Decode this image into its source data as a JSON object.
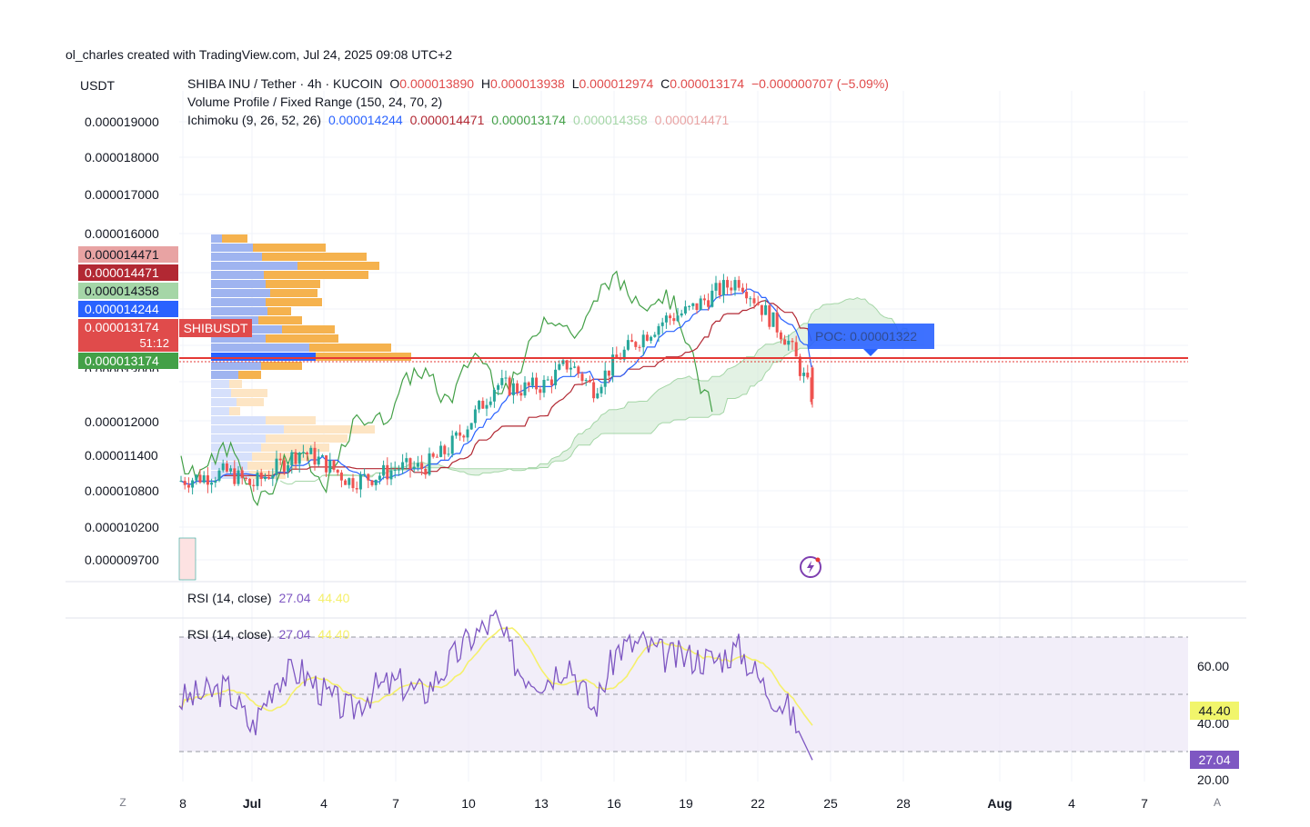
{
  "credit": "ol_charles created with TradingView.com, Jul 24, 2025 09:08 UTC+2",
  "currency_label": "USDT",
  "legend": {
    "pair": "SHIBA INU / Tether · 4h · KUCOIN",
    "o_label": "O",
    "o_value": "0.000013890",
    "h_label": "H",
    "h_value": "0.000013938",
    "l_label": "L",
    "l_value": "0.000012974",
    "c_label": "C",
    "c_value": "0.000013174",
    "change": "−0.000000707 (−5.09%)",
    "volume_profile": "Volume Profile / Fixed Range (150, 24, 70, 2)",
    "ichimoku": "Ichimoku (9, 26, 52, 26)",
    "ichimoku_values": [
      "0.000014244",
      "0.000014471",
      "0.000013174",
      "0.000014358",
      "0.000014471"
    ]
  },
  "symbol_tag": "SHIBUSDT",
  "countdown": "51:12",
  "poc_label": "POC: 0.00001322",
  "price_axis_labels": [
    "0.000019000",
    "0.000018000",
    "0.000017000",
    "0.000016000",
    "0.000013000",
    "0.000012000",
    "0.000011400",
    "0.000010800",
    "0.000010200",
    "0.000009700"
  ],
  "price_tags": [
    {
      "value": "0.000014471",
      "bg": "#e8a3a3",
      "fg": "#131722"
    },
    {
      "value": "0.000014471",
      "bg": "#b22833",
      "fg": "#ffffff"
    },
    {
      "value": "0.000014358",
      "bg": "#a5d6a7",
      "fg": "#131722"
    },
    {
      "value": "0.000014244",
      "bg": "#2962ff",
      "fg": "#ffffff"
    },
    {
      "value": "0.000013174",
      "bg": "#e04b4b",
      "fg": "#ffffff"
    },
    {
      "value": "0.000013174",
      "bg": "#43a047",
      "fg": "#ffffff"
    }
  ],
  "rsi": {
    "title": "RSI (14, close)",
    "value": "27.04",
    "ma_value": "44.40",
    "axis_labels": [
      "60.00",
      "40.00",
      "20.00"
    ],
    "value_tag": "27.04",
    "ma_tag": "44.40"
  },
  "x_axis": {
    "left_button": "Z",
    "right_button": "A",
    "ticks": [
      {
        "label": "8",
        "bold": false
      },
      {
        "label": "Jul",
        "bold": true
      },
      {
        "label": "4",
        "bold": false
      },
      {
        "label": "7",
        "bold": false
      },
      {
        "label": "10",
        "bold": false
      },
      {
        "label": "13",
        "bold": false
      },
      {
        "label": "16",
        "bold": false
      },
      {
        "label": "19",
        "bold": false
      },
      {
        "label": "22",
        "bold": false
      },
      {
        "label": "25",
        "bold": false
      },
      {
        "label": "28",
        "bold": false
      },
      {
        "label": "Aug",
        "bold": true
      },
      {
        "label": "4",
        "bold": false
      },
      {
        "label": "7",
        "bold": false
      }
    ]
  },
  "colors": {
    "up": "#26a69a",
    "down": "#ef5350",
    "tenkan": "#2962ff",
    "kijun": "#b22833",
    "chikou": "#43a047",
    "cloud": "#c8e6c9",
    "vp_up": "#9fb4f0",
    "vp_down": "#f5b24e",
    "rsi_line": "#7e57c2",
    "rsi_ma": "#f5f06b",
    "price_line": "#e53935"
  },
  "chart_data": {
    "type": "candlestick",
    "symbol": "SHIBUSDT",
    "interval": "4h",
    "ylim": [
      9.5e-06,
      1.95e-05
    ],
    "last_close": 1.3174e-05,
    "poc": 1.322e-05,
    "close_path": [
      [
        "2025-06-28",
        1.13e-05
      ],
      [
        "2025-06-30",
        1.15e-05
      ],
      [
        "2025-07-01",
        1.12e-05
      ],
      [
        "2025-07-02",
        1.16e-05
      ],
      [
        "2025-07-03",
        1.2e-05
      ],
      [
        "2025-07-04",
        1.17e-05
      ],
      [
        "2025-07-05",
        1.13e-05
      ],
      [
        "2025-07-06",
        1.14e-05
      ],
      [
        "2025-07-07",
        1.16e-05
      ],
      [
        "2025-07-08",
        1.16e-05
      ],
      [
        "2025-07-09",
        1.2e-05
      ],
      [
        "2025-07-10",
        1.27e-05
      ],
      [
        "2025-07-11",
        1.35e-05
      ],
      [
        "2025-07-12",
        1.34e-05
      ],
      [
        "2025-07-13",
        1.35e-05
      ],
      [
        "2025-07-14",
        1.4e-05
      ],
      [
        "2025-07-15",
        1.34e-05
      ],
      [
        "2025-07-16",
        1.41e-05
      ],
      [
        "2025-07-17",
        1.46e-05
      ],
      [
        "2025-07-18",
        1.5e-05
      ],
      [
        "2025-07-19",
        1.52e-05
      ],
      [
        "2025-07-20",
        1.56e-05
      ],
      [
        "2025-07-21",
        1.59e-05
      ],
      [
        "2025-07-22",
        1.52e-05
      ],
      [
        "2025-07-23",
        1.45e-05
      ],
      [
        "2025-07-24",
        1.32e-05
      ]
    ],
    "rsi_path": [
      [
        "2025-06-28",
        48
      ],
      [
        "2025-06-30",
        52
      ],
      [
        "2025-07-01",
        38
      ],
      [
        "2025-07-02",
        56
      ],
      [
        "2025-07-03",
        58
      ],
      [
        "2025-07-04",
        50
      ],
      [
        "2025-07-05",
        44
      ],
      [
        "2025-07-06",
        52
      ],
      [
        "2025-07-07",
        54
      ],
      [
        "2025-07-08",
        50
      ],
      [
        "2025-07-09",
        60
      ],
      [
        "2025-07-10",
        70
      ],
      [
        "2025-07-11",
        76
      ],
      [
        "2025-07-12",
        58
      ],
      [
        "2025-07-13",
        55
      ],
      [
        "2025-07-14",
        62
      ],
      [
        "2025-07-15",
        44
      ],
      [
        "2025-07-16",
        66
      ],
      [
        "2025-07-17",
        68
      ],
      [
        "2025-07-18",
        63
      ],
      [
        "2025-07-19",
        63
      ],
      [
        "2025-07-20",
        62
      ],
      [
        "2025-07-21",
        66
      ],
      [
        "2025-07-22",
        53
      ],
      [
        "2025-07-23",
        45
      ],
      [
        "2025-07-24",
        27.04
      ]
    ],
    "rsi_ylim": [
      18,
      78
    ],
    "rsi_bands": [
      70,
      50,
      30
    ]
  }
}
